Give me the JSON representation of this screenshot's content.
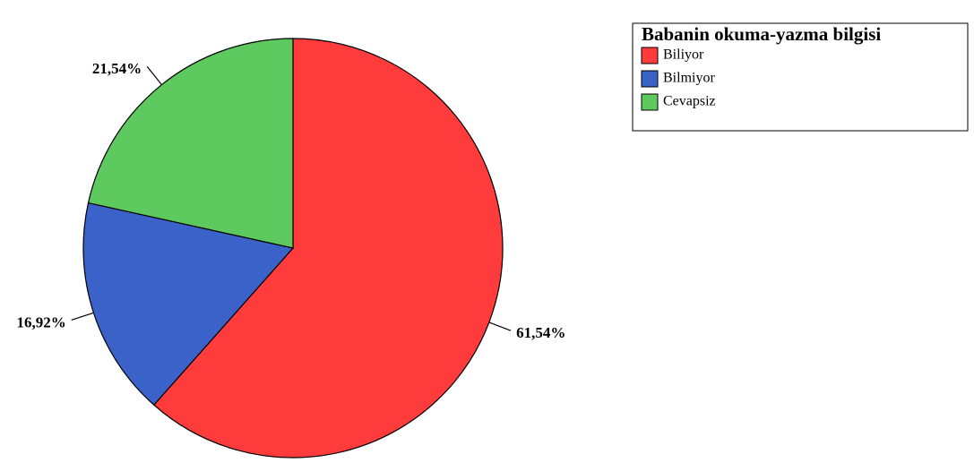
{
  "chart_data": {
    "type": "pie",
    "legend_title": "Babanin okuma-yazma bilgisi",
    "categories": [
      "Biliyor",
      "Bilmiyor",
      "Cevapsiz"
    ],
    "values": [
      61.54,
      16.92,
      21.54
    ],
    "value_labels": [
      "61,54%",
      "16,92%",
      "21,54%"
    ],
    "colors": [
      "#ff3b3b",
      "#3a62c8",
      "#5ec95e"
    ],
    "legend": "top-right"
  }
}
